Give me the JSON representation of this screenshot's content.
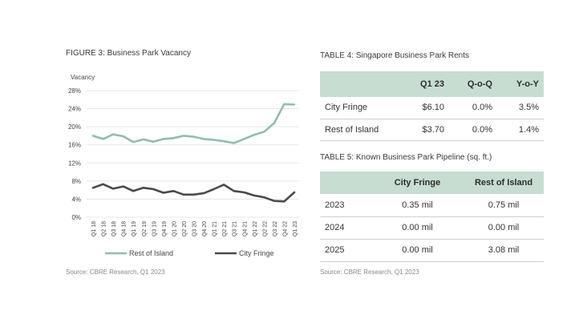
{
  "figure3": {
    "title": "FIGURE 3: Business Park Vacancy",
    "source": "Source: CBRE Research, Q1 2023"
  },
  "chart_data": {
    "type": "line",
    "title": "FIGURE 3: Business Park Vacancy",
    "ylabel": "Vacancy",
    "xlabel": "",
    "ylim": [
      0,
      28
    ],
    "yticks": [
      "0%",
      "4%",
      "8%",
      "12%",
      "16%",
      "20%",
      "24%",
      "28%"
    ],
    "grid": true,
    "legend": "bottom",
    "categories": [
      "Q1 18",
      "Q2 18",
      "Q3 18",
      "Q4 18",
      "Q1 19",
      "Q2 19",
      "Q3 19",
      "Q4 19",
      "Q1 20",
      "Q2 20",
      "Q3 20",
      "Q4 20",
      "Q1 21",
      "Q2 21",
      "Q3 21",
      "Q4 21",
      "Q1 22",
      "Q2 22",
      "Q3 22",
      "Q4 22",
      "Q1 23"
    ],
    "series": [
      {
        "name": "Rest of Island",
        "color": "#8fbfa9",
        "values": [
          18.0,
          17.3,
          18.3,
          17.9,
          16.6,
          17.2,
          16.7,
          17.3,
          17.5,
          18.0,
          17.8,
          17.3,
          17.1,
          16.8,
          16.4,
          17.3,
          18.2,
          18.9,
          20.8,
          25.0,
          24.9
        ]
      },
      {
        "name": "City Fringe",
        "color": "#4a4a4a",
        "values": [
          6.5,
          7.3,
          6.3,
          6.8,
          5.8,
          6.5,
          6.2,
          5.4,
          5.8,
          5.0,
          5.0,
          5.3,
          6.2,
          7.2,
          5.8,
          5.5,
          4.8,
          4.4,
          3.6,
          3.5,
          5.5
        ]
      }
    ]
  },
  "table4": {
    "title": "TABLE 4: Singapore Business Park Rents",
    "headers": [
      "",
      "Q1 23",
      "Q-o-Q",
      "Y-o-Y"
    ],
    "rows": [
      [
        "City Fringe",
        "$6.10",
        "0.0%",
        "3.5%"
      ],
      [
        "Rest of Island",
        "$3.70",
        "0.0%",
        "1.4%"
      ]
    ]
  },
  "table5": {
    "title": "TABLE 5: Known Business Park Pipeline (sq. ft.)",
    "headers": [
      "",
      "City Fringe",
      "Rest of Island"
    ],
    "rows": [
      [
        "2023",
        "0.35 mil",
        "0.75 mil"
      ],
      [
        "2024",
        "0.00 mil",
        "0.00 mil"
      ],
      [
        "2025",
        "0.00 mil",
        "3.08 mil"
      ]
    ],
    "source": "Source: CBRE Research, Q1 2023"
  },
  "colors": {
    "header_fill": "#c7ddd2",
    "rest_of_island": "#8fbfa9",
    "city_fringe": "#4a4a4a"
  }
}
